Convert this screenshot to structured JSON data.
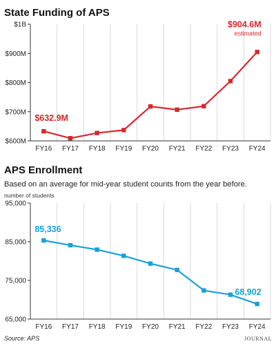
{
  "chart_data": [
    {
      "type": "line",
      "title": "State Funding of APS",
      "subtitle": "",
      "xlabel": "",
      "ylabel": "",
      "categories": [
        "FY16",
        "FY17",
        "FY18",
        "FY19",
        "FY20",
        "FY21",
        "FY22",
        "FY23",
        "FY24"
      ],
      "series": [
        {
          "values": [
            632.9,
            609,
            627,
            637,
            718,
            707,
            719,
            805,
            904.6
          ]
        }
      ],
      "ylim": [
        600,
        1000
      ],
      "yticks": [
        600,
        700,
        800,
        900,
        1000
      ],
      "ytick_labels": [
        "$600M",
        "$700M",
        "$800M",
        "$900M",
        "$1B"
      ],
      "grid": "vertical",
      "color": "#d7282f",
      "annotations": [
        {
          "index": 0,
          "text": "$632.9M",
          "subtext": ""
        },
        {
          "index": 8,
          "text": "$904.6M",
          "subtext": "estimated"
        }
      ]
    },
    {
      "type": "line",
      "title": "APS Enrollment",
      "subtitle": "Based on an average for mid-year student counts from the year before.",
      "unit_label": "number of students",
      "xlabel": "",
      "ylabel": "",
      "categories": [
        "FY16",
        "FY17",
        "FY18",
        "FY19",
        "FY20",
        "FY21",
        "FY22",
        "FY23",
        "FY24"
      ],
      "series": [
        {
          "values": [
            85336,
            84100,
            82950,
            81350,
            79350,
            77700,
            72400,
            71300,
            68902
          ]
        }
      ],
      "ylim": [
        65000,
        95000
      ],
      "yticks": [
        65000,
        75000,
        85000,
        95000
      ],
      "ytick_labels": [
        "65,000",
        "75,000",
        "85,000",
        "95,000"
      ],
      "grid": "vertical",
      "color": "#1aa0d8",
      "annotations": [
        {
          "index": 0,
          "text": "85,336",
          "subtext": ""
        },
        {
          "index": 8,
          "text": "68,902",
          "subtext": ""
        }
      ]
    }
  ],
  "footer": {
    "source": "Source: APS",
    "credit": "JOURNAL"
  }
}
